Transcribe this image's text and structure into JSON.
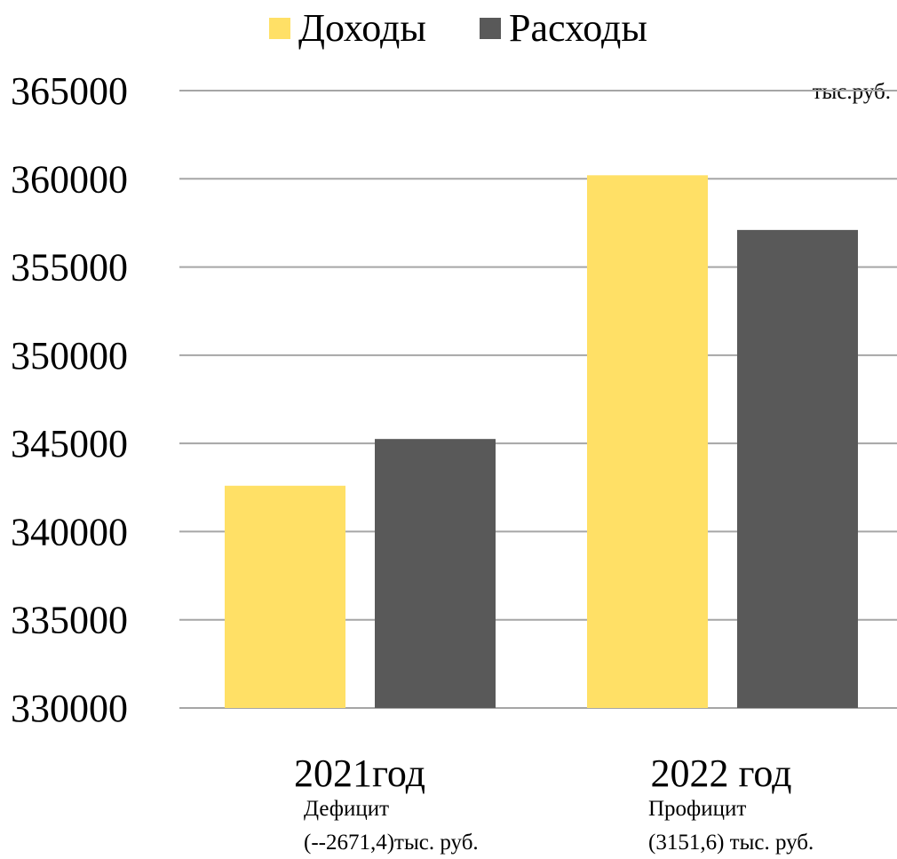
{
  "chart_data": {
    "type": "bar",
    "categories": [
      "2021год",
      "2022 год"
    ],
    "category_notes": [
      [
        "Дефицит",
        "(--2671,4)тыс. руб."
      ],
      [
        "Профицит",
        "(3151,6) тыс. руб."
      ]
    ],
    "series": [
      {
        "name": "Доходы",
        "color": "#FFE066",
        "values": [
          342600,
          360200
        ]
      },
      {
        "name": "Расходы",
        "color": "#595959",
        "values": [
          345250,
          357100
        ]
      }
    ],
    "unit_label": "тыс.руб.",
    "ylim": [
      330000,
      365000
    ],
    "yticks": [
      330000,
      335000,
      340000,
      345000,
      350000,
      355000,
      360000,
      365000
    ],
    "grid": true,
    "gridline_color": "#a6a6a6",
    "legend_position": "top-center"
  }
}
